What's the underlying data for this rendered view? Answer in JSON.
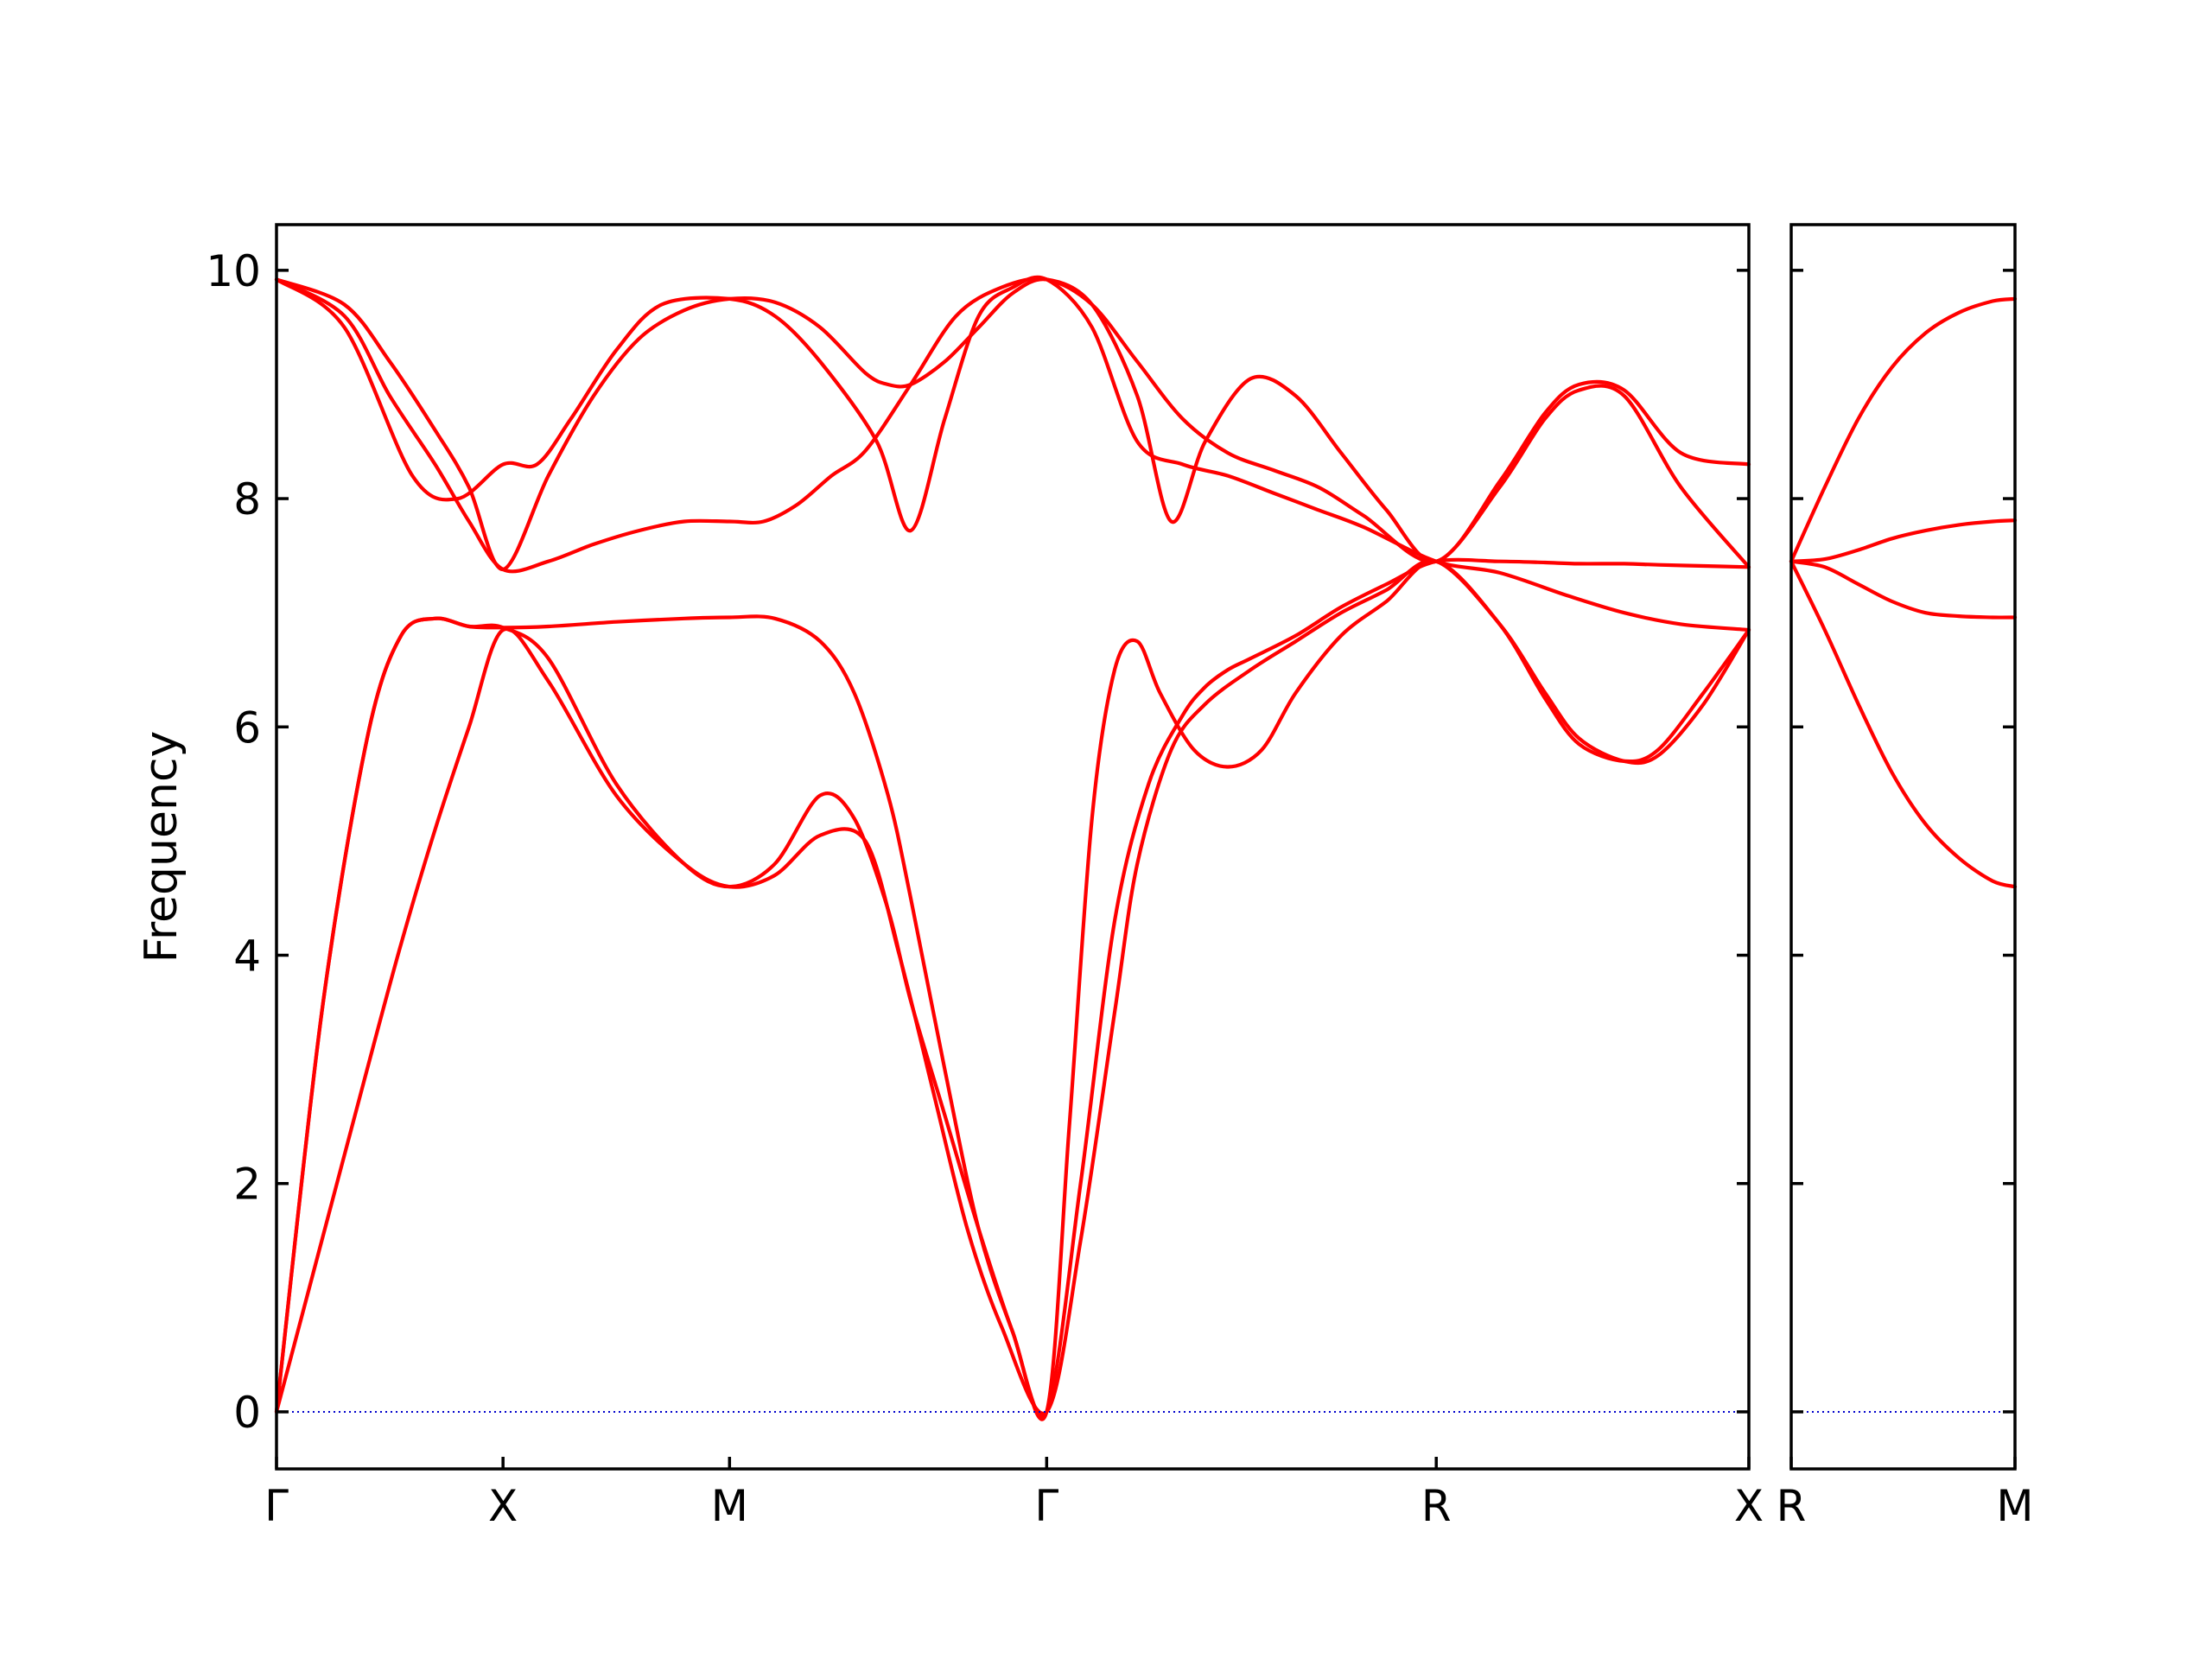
{
  "chart_data": {
    "type": "line",
    "title": "",
    "ylabel": "Frequency",
    "ylim": [
      -0.5,
      10.4
    ],
    "yticks": [
      0,
      2,
      4,
      6,
      8,
      10
    ],
    "grid": false,
    "colors": {
      "bands": "#ff0000",
      "zero_line": "#0000cc",
      "axes": "#000000"
    },
    "panels": [
      {
        "id": "main",
        "x_range": [
          0,
          6.5
        ],
        "xticks": [
          {
            "pos": 0,
            "label": "Γ"
          },
          {
            "pos": 1,
            "label": "X"
          },
          {
            "pos": 2,
            "label": "M"
          },
          {
            "pos": 3.4,
            "label": "Γ"
          },
          {
            "pos": 5.12,
            "label": "R"
          },
          {
            "pos": 6.5,
            "label": "X"
          }
        ],
        "series": [
          {
            "x": [
              0,
              0.2,
              0.4,
              0.55,
              0.7,
              0.85,
              1.0,
              1.2,
              1.5,
              1.8,
              2.0,
              2.2,
              2.4,
              2.6,
              2.75,
              2.9,
              3.05,
              3.2,
              3.4,
              3.55,
              3.7,
              3.8,
              3.95,
              4.1,
              4.3,
              4.5,
              4.7,
              4.9,
              5.12,
              5.4,
              5.6,
              5.75,
              5.95,
              6.1,
              6.3,
              6.5
            ],
            "y": [
              0,
              1.5,
              3.0,
              4.1,
              5.1,
              6.0,
              6.85,
              6.4,
              5.4,
              4.8,
              4.6,
              4.7,
              5.05,
              5.0,
              4.0,
              2.8,
              1.6,
              0.75,
              0,
              1.5,
              3.5,
              4.8,
              5.8,
              6.2,
              6.5,
              6.75,
              7.0,
              7.2,
              7.45,
              6.9,
              6.3,
              5.9,
              5.7,
              5.75,
              6.2,
              6.85
            ]
          },
          {
            "x": [
              0,
              0.2,
              0.4,
              0.55,
              0.7,
              0.85,
              1.0,
              1.2,
              1.5,
              1.8,
              2.0,
              2.2,
              2.4,
              2.55,
              2.7,
              2.8,
              2.95,
              3.1,
              3.25,
              3.4,
              3.5,
              3.6,
              3.7,
              3.8,
              3.9,
              4.05,
              4.2,
              4.35,
              4.5,
              4.7,
              4.9,
              5.12,
              5.4,
              5.6,
              5.75,
              5.95,
              6.1,
              6.3,
              6.5
            ],
            "y": [
              0,
              3.5,
              5.9,
              6.8,
              6.95,
              6.88,
              6.87,
              6.6,
              5.5,
              4.8,
              4.6,
              4.8,
              5.4,
              5.2,
              4.4,
              3.6,
              2.6,
              1.6,
              0.7,
              0,
              2.5,
              5.2,
              6.5,
              6.75,
              6.3,
              5.8,
              5.65,
              5.8,
              6.3,
              6.8,
              7.1,
              7.45,
              6.9,
              6.25,
              5.85,
              5.7,
              5.8,
              6.3,
              6.85
            ]
          },
          {
            "x": [
              0,
              0.2,
              0.4,
              0.55,
              0.7,
              0.85,
              1.0,
              1.2,
              1.5,
              1.8,
              2.0,
              2.2,
              2.4,
              2.55,
              2.7,
              2.8,
              2.95,
              3.1,
              3.25,
              3.4,
              3.55,
              3.7,
              3.85,
              4.0,
              4.1,
              4.2,
              4.3,
              4.5,
              4.7,
              4.9,
              5.12,
              5.4,
              5.6,
              5.75,
              5.95,
              6.1,
              6.3,
              6.5
            ],
            "y": [
              0,
              3.5,
              5.9,
              6.8,
              6.95,
              6.88,
              6.87,
              6.88,
              6.92,
              6.95,
              6.96,
              6.95,
              6.75,
              6.3,
              5.4,
              4.5,
              3.0,
              1.6,
              0.7,
              0,
              2.0,
              4.3,
              5.5,
              6.1,
              6.35,
              6.5,
              6.6,
              6.8,
              7.05,
              7.25,
              7.45,
              7.45,
              7.44,
              7.43,
              7.43,
              7.42,
              7.41,
              7.4
            ]
          },
          {
            "x": [
              0,
              0.3,
              0.6,
              0.8,
              1.0,
              1.15,
              1.3,
              1.5,
              1.7,
              2.0,
              2.2,
              2.4,
              2.65,
              2.8,
              2.95,
              3.1,
              3.25,
              3.4,
              3.6,
              3.8,
              4.0,
              4.2,
              4.4,
              4.6,
              4.8,
              5.12,
              5.4,
              5.7,
              5.95,
              6.2,
              6.5
            ],
            "y": [
              9.92,
              9.5,
              8.2,
              8.0,
              8.3,
              8.3,
              8.7,
              9.3,
              9.7,
              9.75,
              9.6,
              9.2,
              8.5,
              7.72,
              8.7,
              9.6,
              9.85,
              9.92,
              9.5,
              8.5,
              8.3,
              8.2,
              8.05,
              7.9,
              7.75,
              7.45,
              7.35,
              7.15,
              7.0,
              6.9,
              6.85
            ]
          },
          {
            "x": [
              0,
              0.3,
              0.5,
              0.7,
              0.85,
              1.0,
              1.2,
              1.4,
              1.6,
              1.8,
              2.0,
              2.2,
              2.4,
              2.6,
              2.7,
              2.8,
              2.95,
              3.1,
              3.25,
              3.4,
              3.6,
              3.8,
              3.95,
              4.1,
              4.3,
              4.5,
              4.7,
              4.9,
              5.12,
              5.4,
              5.6,
              5.75,
              5.95,
              6.2,
              6.5
            ],
            "y": [
              9.92,
              9.7,
              9.2,
              8.6,
              8.1,
              7.38,
              8.2,
              8.9,
              9.4,
              9.65,
              9.75,
              9.72,
              9.5,
              9.1,
              9.0,
              9.0,
              9.2,
              9.5,
              9.8,
              9.92,
              9.7,
              8.9,
              7.8,
              8.5,
              9.05,
              8.9,
              8.4,
              7.9,
              7.45,
              8.1,
              8.7,
              8.95,
              8.9,
              8.1,
              7.4
            ]
          },
          {
            "x": [
              0,
              0.3,
              0.5,
              0.7,
              0.85,
              1.0,
              1.2,
              1.4,
              1.6,
              1.8,
              2.0,
              2.15,
              2.3,
              2.45,
              2.6,
              2.8,
              3.0,
              3.2,
              3.4,
              3.6,
              3.8,
              4.0,
              4.2,
              4.4,
              4.6,
              4.8,
              5.12,
              5.4,
              5.6,
              5.75,
              5.95,
              6.2,
              6.5
            ],
            "y": [
              9.92,
              9.6,
              8.9,
              8.3,
              7.8,
              7.38,
              7.45,
              7.6,
              7.72,
              7.8,
              7.8,
              7.8,
              7.95,
              8.2,
              8.42,
              9.0,
              9.6,
              9.85,
              9.92,
              9.7,
              9.2,
              8.7,
              8.4,
              8.25,
              8.1,
              7.85,
              7.45,
              8.15,
              8.75,
              9.0,
              8.95,
              8.4,
              8.3
            ]
          }
        ]
      },
      {
        "id": "side",
        "x_range": [
          0,
          1
        ],
        "xticks": [
          {
            "pos": 0,
            "label": "R"
          },
          {
            "pos": 1,
            "label": "M"
          }
        ],
        "series": [
          {
            "x": [
              0,
              0.15,
              0.3,
              0.45,
              0.6,
              0.75,
              0.9,
              1.0
            ],
            "y": [
              7.45,
              6.85,
              6.2,
              5.6,
              5.15,
              4.85,
              4.65,
              4.6
            ]
          },
          {
            "x": [
              0,
              0.15,
              0.3,
              0.45,
              0.6,
              0.75,
              0.9,
              1.0
            ],
            "y": [
              7.45,
              7.4,
              7.25,
              7.1,
              7.0,
              6.97,
              6.96,
              6.96
            ]
          },
          {
            "x": [
              0,
              0.15,
              0.3,
              0.45,
              0.6,
              0.75,
              0.9,
              1.0
            ],
            "y": [
              7.45,
              7.47,
              7.55,
              7.65,
              7.72,
              7.77,
              7.8,
              7.81
            ]
          },
          {
            "x": [
              0,
              0.15,
              0.3,
              0.45,
              0.6,
              0.75,
              0.9,
              1.0
            ],
            "y": [
              7.45,
              8.1,
              8.7,
              9.15,
              9.45,
              9.63,
              9.73,
              9.75
            ]
          }
        ]
      }
    ]
  }
}
